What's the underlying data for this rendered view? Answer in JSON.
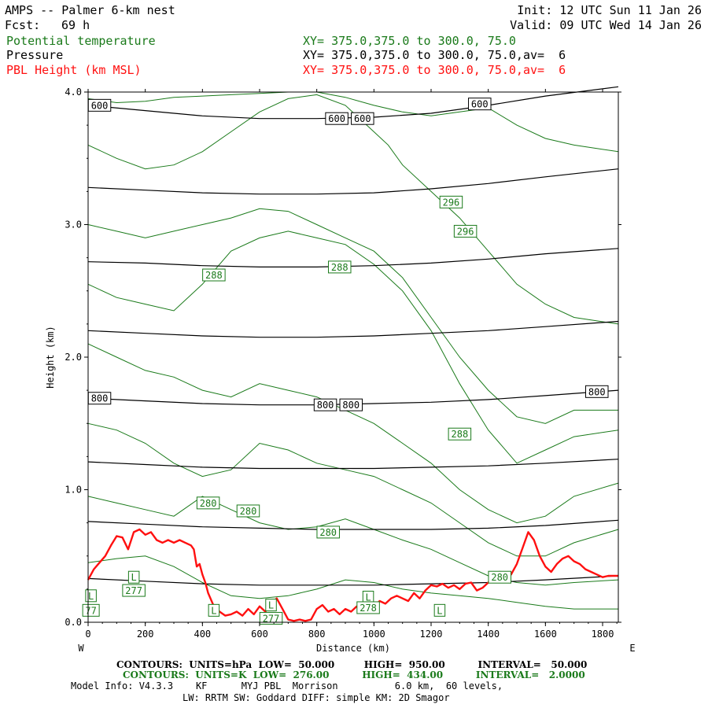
{
  "header": {
    "title": "AMPS -- Palmer 6-km nest",
    "init": "Init: 12 UTC Sun 11 Jan 26",
    "fcst_label": "Fcst:",
    "fcst_value": "69 h",
    "valid": "Valid: 09 UTC Wed 14 Jan 26",
    "field1_name": "Potential temperature",
    "field1_xy": "XY= 375.0,375.0 to 300.0, 75.0",
    "field2_name": "Pressure",
    "field2_xy": "XY= 375.0,375.0 to 300.0, 75.0,av=  6",
    "field3_name": "PBL Height (km MSL)",
    "field3_xy": "XY= 375.0,375.0 to 300.0, 75.0,av=  6"
  },
  "colors": {
    "theta": "#1a7a1a",
    "pressure": "#000000",
    "pbl": "#ff1010"
  },
  "chart_data": {
    "type": "line",
    "xlabel": "Distance (km)",
    "ylabel": "Height (km)",
    "xlim": [
      0,
      1855
    ],
    "ylim": [
      0,
      4.0
    ],
    "x_ticks": [
      "0",
      "200",
      "400",
      "600",
      "800",
      "1000",
      "1200",
      "1400",
      "1600",
      "1800"
    ],
    "x_tick_values": [
      0,
      200,
      400,
      600,
      800,
      1000,
      1200,
      1400,
      1600,
      1800
    ],
    "y_ticks": [
      "0.0",
      "1.0",
      "2.0",
      "3.0",
      "4.0"
    ],
    "y_tick_values": [
      0,
      1,
      2,
      3,
      4
    ],
    "west_label": "W",
    "east_label": "E",
    "pressure_contours": {
      "labels": [
        "600",
        "800"
      ],
      "lines": [
        {
          "value": 600,
          "x": [
            0,
            200,
            400,
            600,
            800,
            1000,
            1200,
            1400,
            1600,
            1855
          ],
          "y": [
            3.9,
            3.86,
            3.82,
            3.8,
            3.8,
            3.81,
            3.84,
            3.9,
            3.97,
            4.04
          ]
        },
        {
          "value": 650,
          "x": [
            0,
            200,
            400,
            600,
            800,
            1000,
            1200,
            1400,
            1600,
            1855
          ],
          "y": [
            3.28,
            3.26,
            3.24,
            3.23,
            3.23,
            3.24,
            3.27,
            3.31,
            3.36,
            3.42
          ]
        },
        {
          "value": 700,
          "x": [
            0,
            200,
            400,
            600,
            800,
            1000,
            1200,
            1400,
            1600,
            1855
          ],
          "y": [
            2.72,
            2.71,
            2.69,
            2.68,
            2.68,
            2.69,
            2.71,
            2.74,
            2.78,
            2.82
          ]
        },
        {
          "value": 750,
          "x": [
            0,
            200,
            400,
            600,
            800,
            1000,
            1200,
            1400,
            1600,
            1855
          ],
          "y": [
            2.2,
            2.18,
            2.16,
            2.15,
            2.15,
            2.16,
            2.18,
            2.2,
            2.23,
            2.27
          ]
        },
        {
          "value": 800,
          "x": [
            0,
            200,
            400,
            600,
            800,
            1000,
            1200,
            1400,
            1600,
            1855
          ],
          "y": [
            1.69,
            1.67,
            1.65,
            1.64,
            1.64,
            1.65,
            1.66,
            1.68,
            1.71,
            1.75
          ]
        },
        {
          "value": 850,
          "x": [
            0,
            200,
            400,
            600,
            800,
            1000,
            1200,
            1400,
            1600,
            1855
          ],
          "y": [
            1.21,
            1.19,
            1.17,
            1.16,
            1.16,
            1.16,
            1.17,
            1.18,
            1.2,
            1.23
          ]
        },
        {
          "value": 900,
          "x": [
            0,
            200,
            400,
            600,
            800,
            1000,
            1200,
            1400,
            1600,
            1855
          ],
          "y": [
            0.76,
            0.74,
            0.72,
            0.71,
            0.7,
            0.7,
            0.7,
            0.71,
            0.73,
            0.77
          ]
        },
        {
          "value": 950,
          "x": [
            0,
            200,
            400,
            600,
            800,
            1000,
            1200,
            1400,
            1600,
            1855
          ],
          "y": [
            0.33,
            0.31,
            0.29,
            0.28,
            0.28,
            0.28,
            0.29,
            0.3,
            0.32,
            0.35
          ]
        }
      ],
      "label_positions": [
        {
          "text": "600",
          "x": 40,
          "y": 3.9
        },
        {
          "text": "600",
          "x": 870,
          "y": 3.8
        },
        {
          "text": "600",
          "x": 960,
          "y": 3.8
        },
        {
          "text": "600",
          "x": 1370,
          "y": 3.91
        },
        {
          "text": "800",
          "x": 40,
          "y": 1.69
        },
        {
          "text": "800",
          "x": 830,
          "y": 1.64
        },
        {
          "text": "800",
          "x": 920,
          "y": 1.64
        },
        {
          "text": "800",
          "x": 1780,
          "y": 1.74
        }
      ]
    },
    "theta_contours": {
      "labels": [
        "296",
        "288",
        "280",
        "277",
        "L"
      ],
      "lines": [
        {
          "value": 298,
          "x": [
            0,
            100,
            200,
            300,
            400,
            500,
            600,
            700,
            800,
            900,
            1000,
            1100,
            1200,
            1300,
            1400,
            1500,
            1600,
            1700,
            1855
          ],
          "y": [
            3.95,
            3.92,
            3.93,
            3.96,
            3.97,
            3.98,
            3.99,
            4.0,
            4.0,
            3.96,
            3.9,
            3.85,
            3.82,
            3.85,
            3.88,
            3.75,
            3.65,
            3.6,
            3.55
          ]
        },
        {
          "value": 296,
          "x": [
            0,
            100,
            200,
            300,
            400,
            500,
            600,
            700,
            800,
            900,
            1000,
            1050,
            1100,
            1200,
            1300,
            1400,
            1500,
            1600,
            1700,
            1855
          ],
          "y": [
            3.6,
            3.5,
            3.42,
            3.45,
            3.55,
            3.7,
            3.85,
            3.95,
            3.98,
            3.9,
            3.7,
            3.6,
            3.45,
            3.25,
            3.05,
            2.8,
            2.55,
            2.4,
            2.3,
            2.25
          ]
        },
        {
          "value": 292,
          "x": [
            0,
            100,
            200,
            300,
            400,
            500,
            600,
            700,
            800,
            900,
            1000,
            1100,
            1200,
            1300,
            1400,
            1500,
            1600,
            1700,
            1855
          ],
          "y": [
            3.0,
            2.95,
            2.9,
            2.95,
            3.0,
            3.05,
            3.12,
            3.1,
            3.0,
            2.9,
            2.8,
            2.6,
            2.3,
            2.0,
            1.75,
            1.55,
            1.5,
            1.6,
            1.6
          ]
        },
        {
          "value": 288,
          "x": [
            0,
            100,
            200,
            300,
            400,
            500,
            600,
            700,
            800,
            900,
            1000,
            1100,
            1200,
            1300,
            1400,
            1500,
            1600,
            1700,
            1855
          ],
          "y": [
            2.55,
            2.45,
            2.4,
            2.35,
            2.55,
            2.8,
            2.9,
            2.95,
            2.9,
            2.85,
            2.7,
            2.5,
            2.2,
            1.8,
            1.45,
            1.2,
            1.3,
            1.4,
            1.45
          ]
        },
        {
          "value": 284,
          "x": [
            0,
            100,
            200,
            300,
            400,
            500,
            600,
            700,
            800,
            900,
            1000,
            1100,
            1200,
            1300,
            1400,
            1500,
            1600,
            1700,
            1855
          ],
          "y": [
            2.1,
            2.0,
            1.9,
            1.85,
            1.75,
            1.7,
            1.8,
            1.75,
            1.7,
            1.6,
            1.5,
            1.35,
            1.2,
            1.0,
            0.85,
            0.75,
            0.8,
            0.95,
            1.05
          ]
        },
        {
          "value": 282,
          "x": [
            0,
            100,
            200,
            300,
            400,
            500,
            600,
            700,
            800,
            900,
            1000,
            1100,
            1200,
            1300,
            1400,
            1500,
            1600,
            1700,
            1855
          ],
          "y": [
            1.5,
            1.45,
            1.35,
            1.2,
            1.1,
            1.15,
            1.35,
            1.3,
            1.2,
            1.15,
            1.1,
            1.0,
            0.9,
            0.75,
            0.6,
            0.5,
            0.5,
            0.6,
            0.7
          ]
        },
        {
          "value": 280,
          "x": [
            0,
            100,
            200,
            300,
            400,
            500,
            600,
            700,
            800,
            900,
            1000,
            1100,
            1200,
            1300,
            1400,
            1500,
            1600,
            1700,
            1855
          ],
          "y": [
            0.95,
            0.9,
            0.85,
            0.8,
            0.95,
            0.85,
            0.75,
            0.7,
            0.72,
            0.78,
            0.7,
            0.62,
            0.55,
            0.45,
            0.35,
            0.3,
            0.28,
            0.3,
            0.32
          ]
        },
        {
          "value": 278,
          "x": [
            0,
            100,
            200,
            300,
            400,
            500,
            600,
            700,
            800,
            900,
            1000,
            1100,
            1200,
            1300,
            1400,
            1500,
            1600,
            1700,
            1855
          ],
          "y": [
            0.45,
            0.48,
            0.5,
            0.42,
            0.3,
            0.2,
            0.18,
            0.2,
            0.25,
            0.32,
            0.3,
            0.25,
            0.22,
            0.2,
            0.18,
            0.15,
            0.12,
            0.1,
            0.1
          ]
        }
      ],
      "label_positions": [
        {
          "text": "296",
          "x": 1270,
          "y": 3.17
        },
        {
          "text": "296",
          "x": 1320,
          "y": 2.95
        },
        {
          "text": "288",
          "x": 440,
          "y": 2.62
        },
        {
          "text": "288",
          "x": 880,
          "y": 2.68
        },
        {
          "text": "288",
          "x": 1300,
          "y": 1.42
        },
        {
          "text": "280",
          "x": 420,
          "y": 0.9
        },
        {
          "text": "280",
          "x": 560,
          "y": 0.84
        },
        {
          "text": "280",
          "x": 840,
          "y": 0.68
        },
        {
          "text": "277",
          "x": 160,
          "y": 0.24
        },
        {
          "text": "L",
          "x": 160,
          "y": 0.34
        },
        {
          "text": "L",
          "x": 10,
          "y": 0.2
        },
        {
          "text": "77",
          "x": 10,
          "y": 0.09
        },
        {
          "text": "L",
          "x": 440,
          "y": 0.09
        },
        {
          "text": "L",
          "x": 640,
          "y": 0.13
        },
        {
          "text": "277",
          "x": 640,
          "y": 0.03
        },
        {
          "text": "L",
          "x": 980,
          "y": 0.19
        },
        {
          "text": "278",
          "x": 980,
          "y": 0.11
        },
        {
          "text": "L",
          "x": 1230,
          "y": 0.09
        },
        {
          "text": "280",
          "x": 1440,
          "y": 0.34
        }
      ]
    },
    "pbl_height": {
      "x": [
        0,
        20,
        40,
        60,
        80,
        100,
        120,
        140,
        160,
        180,
        200,
        220,
        240,
        260,
        280,
        300,
        320,
        340,
        360,
        370,
        380,
        390,
        400,
        410,
        420,
        440,
        460,
        480,
        500,
        520,
        540,
        560,
        580,
        600,
        620,
        640,
        660,
        680,
        700,
        720,
        740,
        760,
        780,
        800,
        820,
        840,
        860,
        880,
        900,
        920,
        940,
        960,
        980,
        1000,
        1020,
        1040,
        1060,
        1080,
        1100,
        1120,
        1140,
        1160,
        1180,
        1200,
        1220,
        1240,
        1260,
        1280,
        1300,
        1320,
        1340,
        1360,
        1380,
        1400,
        1420,
        1440,
        1460,
        1480,
        1500,
        1520,
        1540,
        1560,
        1580,
        1600,
        1620,
        1640,
        1660,
        1680,
        1700,
        1720,
        1740,
        1760,
        1780,
        1800,
        1820,
        1855
      ],
      "y": [
        0.32,
        0.4,
        0.45,
        0.5,
        0.58,
        0.65,
        0.64,
        0.55,
        0.68,
        0.7,
        0.66,
        0.68,
        0.62,
        0.6,
        0.62,
        0.6,
        0.62,
        0.6,
        0.58,
        0.55,
        0.42,
        0.44,
        0.36,
        0.3,
        0.22,
        0.12,
        0.08,
        0.05,
        0.06,
        0.08,
        0.05,
        0.1,
        0.06,
        0.12,
        0.08,
        0.14,
        0.18,
        0.1,
        0.02,
        0.01,
        0.02,
        0.01,
        0.02,
        0.1,
        0.13,
        0.08,
        0.1,
        0.06,
        0.1,
        0.08,
        0.12,
        0.1,
        0.14,
        0.12,
        0.16,
        0.14,
        0.18,
        0.2,
        0.18,
        0.16,
        0.22,
        0.18,
        0.24,
        0.28,
        0.27,
        0.29,
        0.26,
        0.28,
        0.25,
        0.29,
        0.3,
        0.24,
        0.26,
        0.3,
        0.36,
        0.38,
        0.32,
        0.36,
        0.44,
        0.56,
        0.68,
        0.62,
        0.5,
        0.42,
        0.38,
        0.44,
        0.48,
        0.5,
        0.46,
        0.44,
        0.4,
        0.38,
        0.36,
        0.34,
        0.35,
        0.35
      ]
    }
  },
  "footer": {
    "line1": "CONTOURS:  UNITS=hPa  LOW=  50.000         HIGH=  950.00          INTERVAL=   50.000",
    "line2": "CONTOURS:  UNITS=K  LOW=  276.00          HIGH=  434.00          INTERVAL=   2.0000",
    "line3": "Model Info: V4.3.3    KF      MYJ PBL  Morrison          6.0 km,  60 levels,",
    "line4": "LW: RRTM SW: Goddard DIFF: simple KM: 2D Smagor"
  }
}
